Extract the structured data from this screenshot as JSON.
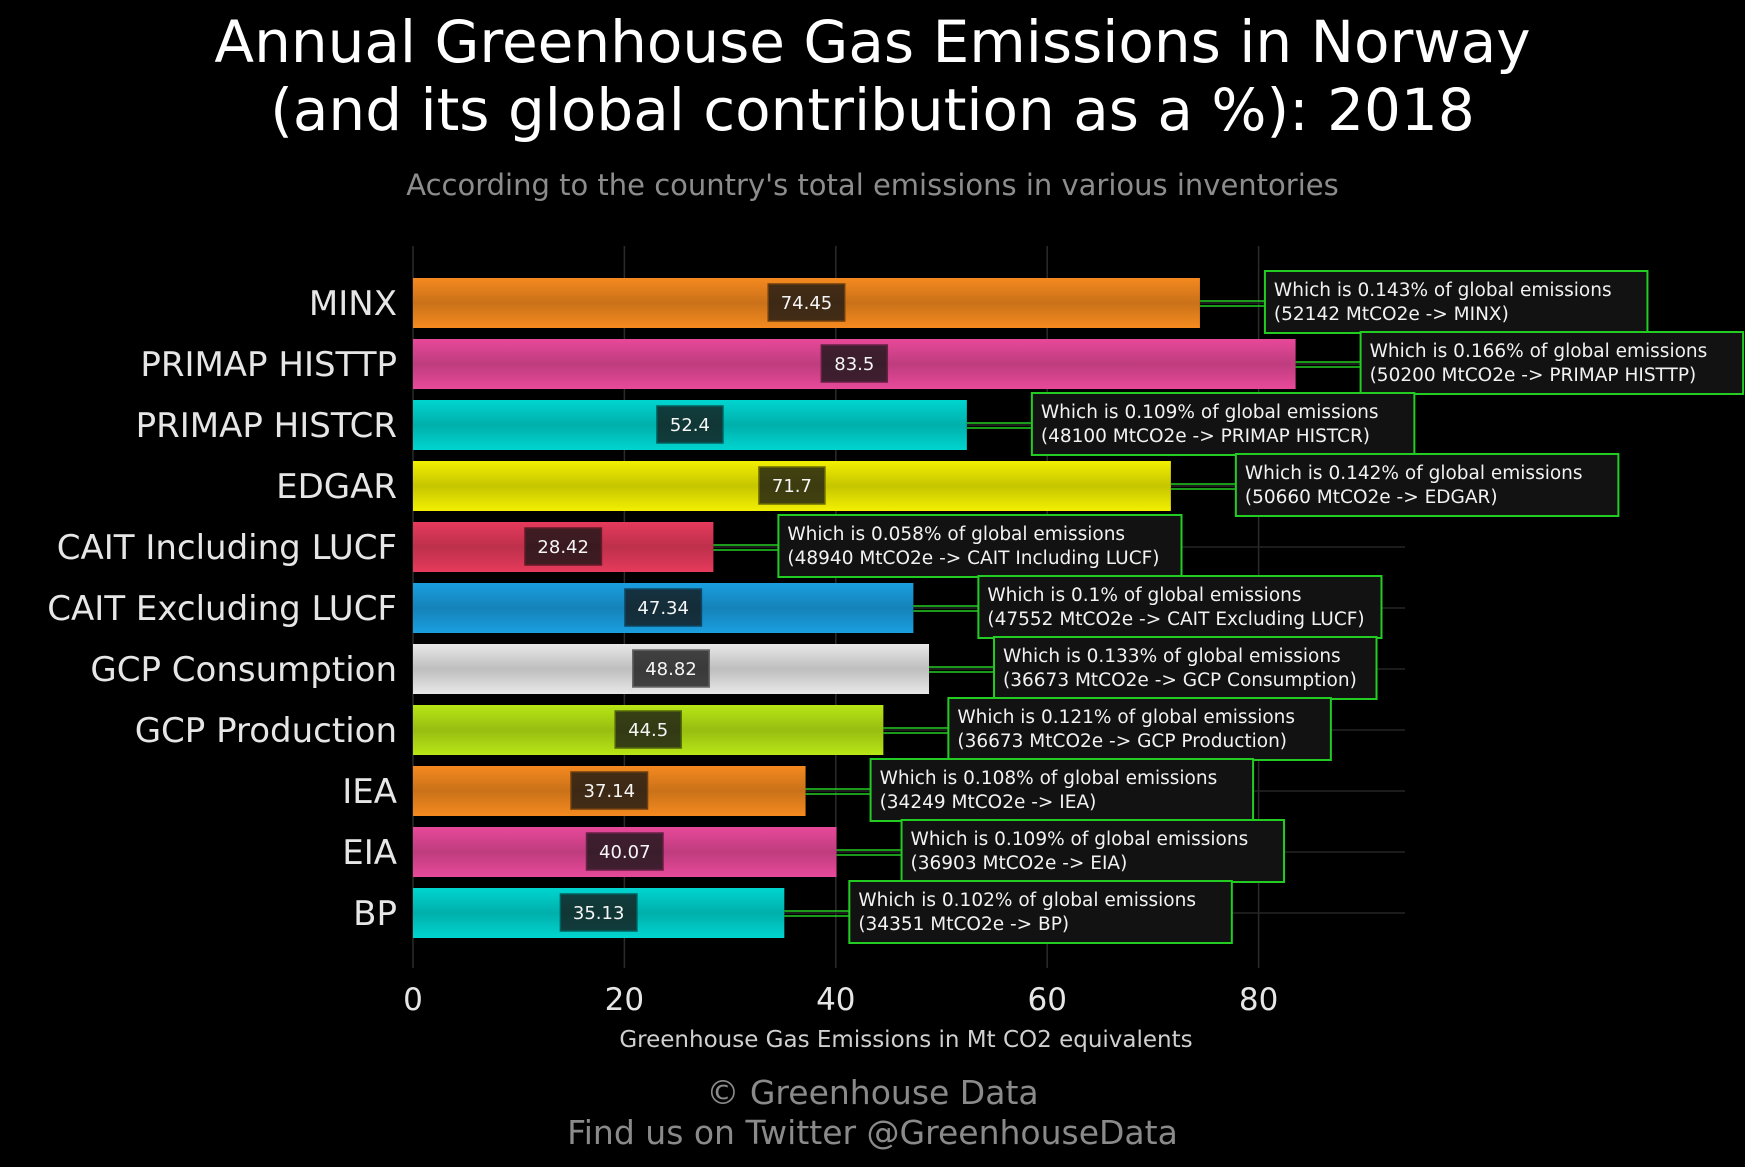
{
  "title_line1": "Annual Greenhouse Gas Emissions in Norway",
  "title_line2": "(and its global contribution as a %): 2018",
  "subtitle": "According to the country's total emissions in various inventories",
  "footer_line1": "© Greenhouse Data",
  "footer_line2": "Find us on Twitter @GreenhouseData",
  "chart_data": {
    "type": "bar",
    "orientation": "horizontal",
    "xlabel": "Greenhouse Gas Emissions in Mt CO2 equivalents",
    "xlim": [
      0,
      94
    ],
    "xticks": [
      0,
      20,
      40,
      60,
      80
    ],
    "grid": true,
    "categories": [
      "MINX",
      "PRIMAP HISTTP",
      "PRIMAP HISTCR",
      "EDGAR",
      "CAIT Including LUCF",
      "CAIT Excluding LUCF",
      "GCP Consumption",
      "GCP Production",
      "IEA",
      "EIA",
      "BP"
    ],
    "values": [
      74.45,
      83.5,
      52.4,
      71.7,
      28.42,
      47.34,
      48.82,
      44.5,
      37.14,
      40.07,
      35.13
    ],
    "value_labels": [
      "74.45",
      "83.5",
      "52.4",
      "71.7",
      "28.42",
      "47.34",
      "48.82",
      "44.5",
      "37.14",
      "40.07",
      "35.13"
    ],
    "colors": [
      "#f58a1f",
      "#e8499a",
      "#00d5d0",
      "#f2f000",
      "#e63a5c",
      "#1a9fe0",
      "#e8e8e8",
      "#b8e615",
      "#f58a1f",
      "#e8499a",
      "#00d5d0"
    ],
    "annotations": [
      [
        "Which is 0.143% of global emissions",
        "(52142 MtCO2e -> MINX)"
      ],
      [
        "Which is 0.166% of global emissions",
        "(50200 MtCO2e -> PRIMAP HISTTP)"
      ],
      [
        "Which is 0.109% of global emissions",
        "(48100 MtCO2e -> PRIMAP HISTCR)"
      ],
      [
        "Which is 0.142% of global emissions",
        "(50660 MtCO2e -> EDGAR)"
      ],
      [
        "Which is 0.058% of global emissions",
        "(48940 MtCO2e -> CAIT Including LUCF)"
      ],
      [
        "Which is 0.1% of global emissions",
        "(47552 MtCO2e -> CAIT Excluding LUCF)"
      ],
      [
        "Which is 0.133% of global emissions",
        "(36673 MtCO2e -> GCP Consumption)"
      ],
      [
        "Which is 0.121% of global emissions",
        "(36673 MtCO2e -> GCP Production)"
      ],
      [
        "Which is 0.108% of global emissions",
        "(34249 MtCO2e -> IEA)"
      ],
      [
        "Which is 0.109% of global emissions",
        "(36903 MtCO2e -> EIA)"
      ],
      [
        "Which is 0.102% of global emissions",
        "(34351 MtCO2e -> BP)"
      ]
    ],
    "annotation_border_color": "#22cc22"
  }
}
